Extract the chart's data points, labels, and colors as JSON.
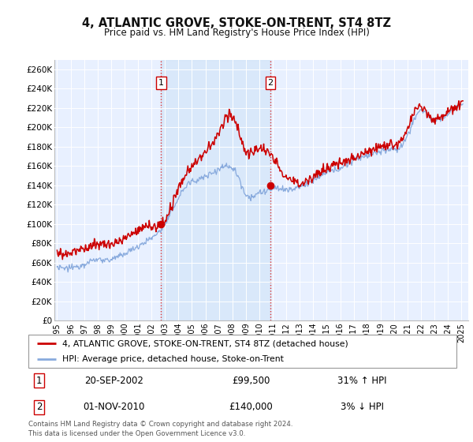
{
  "title": "4, ATLANTIC GROVE, STOKE-ON-TRENT, ST4 8TZ",
  "subtitle": "Price paid vs. HM Land Registry's House Price Index (HPI)",
  "legend_line1": "4, ATLANTIC GROVE, STOKE-ON-TRENT, ST4 8TZ (detached house)",
  "legend_line2": "HPI: Average price, detached house, Stoke-on-Trent",
  "sale1_date": "20-SEP-2002",
  "sale1_price": "£99,500",
  "sale1_hpi": "31% ↑ HPI",
  "sale2_date": "01-NOV-2010",
  "sale2_price": "£140,000",
  "sale2_hpi": "3% ↓ HPI",
  "footer": "Contains HM Land Registry data © Crown copyright and database right 2024.\nThis data is licensed under the Open Government Licence v3.0.",
  "sale1_year": 2002.72,
  "sale1_value": 99500,
  "sale2_year": 2010.83,
  "sale2_value": 140000,
  "bg_color": "#e8f0ff",
  "shade_color": "#d0e4f7",
  "line_color_property": "#cc0000",
  "line_color_hpi": "#88aadd",
  "grid_color": "#ffffff",
  "ylim": [
    0,
    270000
  ],
  "yticks": [
    0,
    20000,
    40000,
    60000,
    80000,
    100000,
    120000,
    140000,
    160000,
    180000,
    200000,
    220000,
    240000,
    260000
  ],
  "xlim_start": 1994.8,
  "xlim_end": 2025.5,
  "hpi_years": [
    1995.0,
    1995.25,
    1995.5,
    1995.75,
    1996.0,
    1996.25,
    1996.5,
    1996.75,
    1997.0,
    1997.25,
    1997.5,
    1997.75,
    1998.0,
    1998.25,
    1998.5,
    1998.75,
    1999.0,
    1999.25,
    1999.5,
    1999.75,
    2000.0,
    2000.25,
    2000.5,
    2000.75,
    2001.0,
    2001.25,
    2001.5,
    2001.75,
    2002.0,
    2002.25,
    2002.5,
    2002.75,
    2003.0,
    2003.25,
    2003.5,
    2003.75,
    2004.0,
    2004.25,
    2004.5,
    2004.75,
    2005.0,
    2005.25,
    2005.5,
    2005.75,
    2006.0,
    2006.25,
    2006.5,
    2006.75,
    2007.0,
    2007.25,
    2007.5,
    2007.75,
    2008.0,
    2008.25,
    2008.5,
    2008.75,
    2009.0,
    2009.25,
    2009.5,
    2009.75,
    2010.0,
    2010.25,
    2010.5,
    2010.75,
    2011.0,
    2011.25,
    2011.5,
    2011.75,
    2012.0,
    2012.25,
    2012.5,
    2012.75,
    2013.0,
    2013.25,
    2013.5,
    2013.75,
    2014.0,
    2014.25,
    2014.5,
    2014.75,
    2015.0,
    2015.25,
    2015.5,
    2015.75,
    2016.0,
    2016.25,
    2016.5,
    2016.75,
    2017.0,
    2017.25,
    2017.5,
    2017.75,
    2018.0,
    2018.25,
    2018.5,
    2018.75,
    2019.0,
    2019.25,
    2019.5,
    2019.75,
    2020.0,
    2020.25,
    2020.5,
    2020.75,
    2021.0,
    2021.25,
    2021.5,
    2021.75,
    2022.0,
    2022.25,
    2022.5,
    2022.75,
    2023.0,
    2023.25,
    2023.5,
    2023.75,
    2024.0,
    2024.25,
    2024.5,
    2024.75,
    2025.0
  ],
  "hpi_values": [
    55000,
    54000,
    53500,
    54000,
    54500,
    55000,
    56000,
    57000,
    58500,
    60000,
    61500,
    62500,
    63000,
    63500,
    63000,
    62500,
    63000,
    64000,
    65500,
    67000,
    69000,
    71000,
    73000,
    75000,
    77000,
    79000,
    81000,
    83000,
    85000,
    88000,
    91000,
    95000,
    100000,
    106000,
    113000,
    120000,
    127000,
    133000,
    138000,
    142000,
    144000,
    145000,
    146000,
    147000,
    149000,
    151000,
    153000,
    155000,
    157000,
    159000,
    160000,
    160000,
    158000,
    154000,
    147000,
    138000,
    130000,
    128000,
    128000,
    130000,
    132000,
    133000,
    134000,
    135000,
    136000,
    137000,
    137000,
    136000,
    135000,
    135000,
    136000,
    137000,
    138000,
    140000,
    142000,
    143000,
    145000,
    147000,
    149000,
    151000,
    153000,
    154000,
    155000,
    156000,
    158000,
    160000,
    162000,
    164000,
    166000,
    168000,
    169000,
    170000,
    171000,
    172000,
    173000,
    174000,
    175000,
    176000,
    177000,
    177000,
    176000,
    177000,
    180000,
    185000,
    192000,
    200000,
    208000,
    215000,
    218000,
    217000,
    213000,
    208000,
    206000,
    207000,
    209000,
    211000,
    214000,
    217000,
    220000,
    222000,
    224000
  ],
  "prop_years": [
    1995.0,
    1995.25,
    1995.5,
    1995.75,
    1996.0,
    1996.25,
    1996.5,
    1996.75,
    1997.0,
    1997.25,
    1997.5,
    1997.75,
    1998.0,
    1998.25,
    1998.5,
    1998.75,
    1999.0,
    1999.25,
    1999.5,
    1999.75,
    2000.0,
    2000.25,
    2000.5,
    2000.75,
    2001.0,
    2001.25,
    2001.5,
    2001.75,
    2002.0,
    2002.25,
    2002.5,
    2002.75,
    2003.0,
    2003.25,
    2003.5,
    2003.75,
    2004.0,
    2004.25,
    2004.5,
    2004.75,
    2005.0,
    2005.25,
    2005.5,
    2005.75,
    2006.0,
    2006.25,
    2006.5,
    2006.75,
    2007.0,
    2007.25,
    2007.5,
    2007.75,
    2008.0,
    2008.25,
    2008.5,
    2008.75,
    2009.0,
    2009.25,
    2009.5,
    2009.75,
    2010.0,
    2010.25,
    2010.5,
    2010.75,
    2011.0,
    2011.25,
    2011.5,
    2011.75,
    2012.0,
    2012.25,
    2012.5,
    2012.75,
    2013.0,
    2013.25,
    2013.5,
    2013.75,
    2014.0,
    2014.25,
    2014.5,
    2014.75,
    2015.0,
    2015.25,
    2015.5,
    2015.75,
    2016.0,
    2016.25,
    2016.5,
    2016.75,
    2017.0,
    2017.25,
    2017.5,
    2017.75,
    2018.0,
    2018.25,
    2018.5,
    2018.75,
    2019.0,
    2019.25,
    2019.5,
    2019.75,
    2020.0,
    2020.25,
    2020.5,
    2020.75,
    2021.0,
    2021.25,
    2021.5,
    2021.75,
    2022.0,
    2022.25,
    2022.5,
    2022.75,
    2023.0,
    2023.25,
    2023.5,
    2023.75,
    2024.0,
    2024.25,
    2024.5,
    2024.75,
    2025.0
  ],
  "prop_values": [
    70000,
    69000,
    68500,
    69500,
    70000,
    71000,
    72000,
    73000,
    74500,
    76000,
    77500,
    78500,
    79000,
    79500,
    79000,
    78500,
    79000,
    80000,
    81500,
    83000,
    85000,
    87000,
    89000,
    91000,
    93000,
    95000,
    97000,
    99000,
    97000,
    96500,
    97000,
    99500,
    103000,
    110000,
    118000,
    127000,
    136000,
    143000,
    150000,
    156000,
    160000,
    163000,
    167000,
    170000,
    174000,
    178000,
    183000,
    188000,
    194000,
    200000,
    210000,
    215000,
    212000,
    205000,
    195000,
    183000,
    175000,
    172000,
    173000,
    176000,
    180000,
    178000,
    175000,
    172000,
    168000,
    163000,
    158000,
    153000,
    148000,
    146000,
    144000,
    143000,
    142000,
    143000,
    145000,
    147000,
    149000,
    151000,
    153000,
    155000,
    157000,
    159000,
    161000,
    162000,
    163000,
    164000,
    165000,
    167000,
    169000,
    171000,
    173000,
    174000,
    175000,
    176000,
    177000,
    179000,
    180000,
    181000,
    182000,
    182000,
    181000,
    182000,
    185000,
    190000,
    198000,
    207000,
    215000,
    221000,
    222000,
    220000,
    215000,
    210000,
    208000,
    210000,
    212000,
    214000,
    217000,
    219000,
    221000,
    223000,
    225000
  ]
}
